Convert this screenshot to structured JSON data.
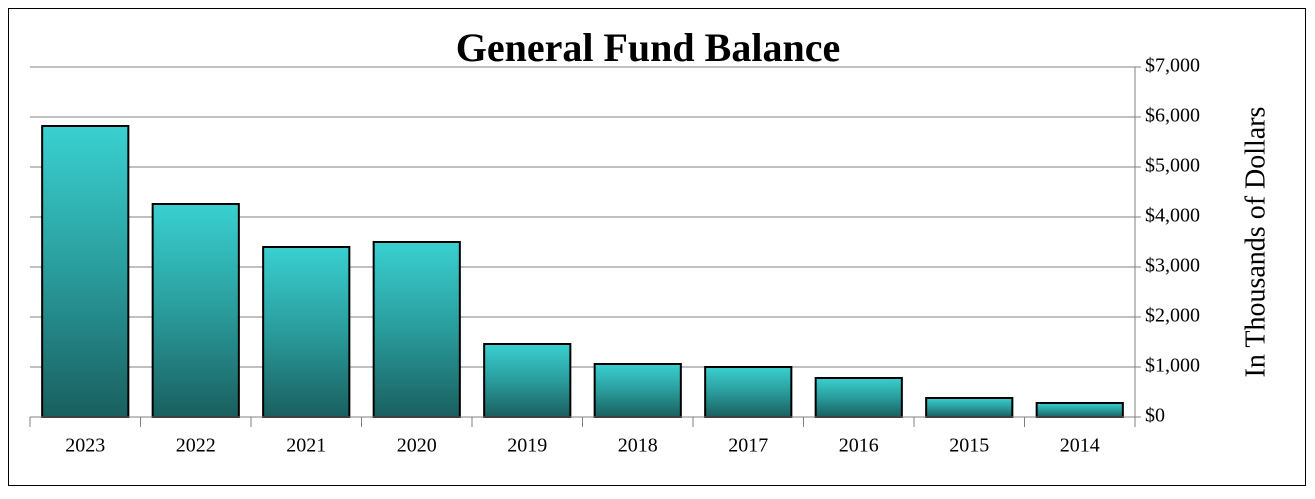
{
  "chart_data": {
    "type": "bar",
    "title": "General Fund Balance",
    "y_label": "In Thousands of Dollars",
    "categories": [
      "2023",
      "2022",
      "2021",
      "2020",
      "2019",
      "2018",
      "2017",
      "2016",
      "2015",
      "2014"
    ],
    "values": [
      5820,
      4260,
      3400,
      3500,
      1460,
      1060,
      1000,
      780,
      380,
      280
    ],
    "color": "#33cccc",
    "ylim": [
      0,
      7000
    ],
    "yticks": [
      {
        "value": 0,
        "label": "$0"
      },
      {
        "value": 1000,
        "label": "$1,000"
      },
      {
        "value": 2000,
        "label": "$2,000"
      },
      {
        "value": 3000,
        "label": "$3,000"
      },
      {
        "value": 4000,
        "label": "$4,000"
      },
      {
        "value": 5000,
        "label": "$5,000"
      },
      {
        "value": 6000,
        "label": "$6,000"
      },
      {
        "value": 7000,
        "label": "$7,000"
      }
    ],
    "grid": true
  }
}
